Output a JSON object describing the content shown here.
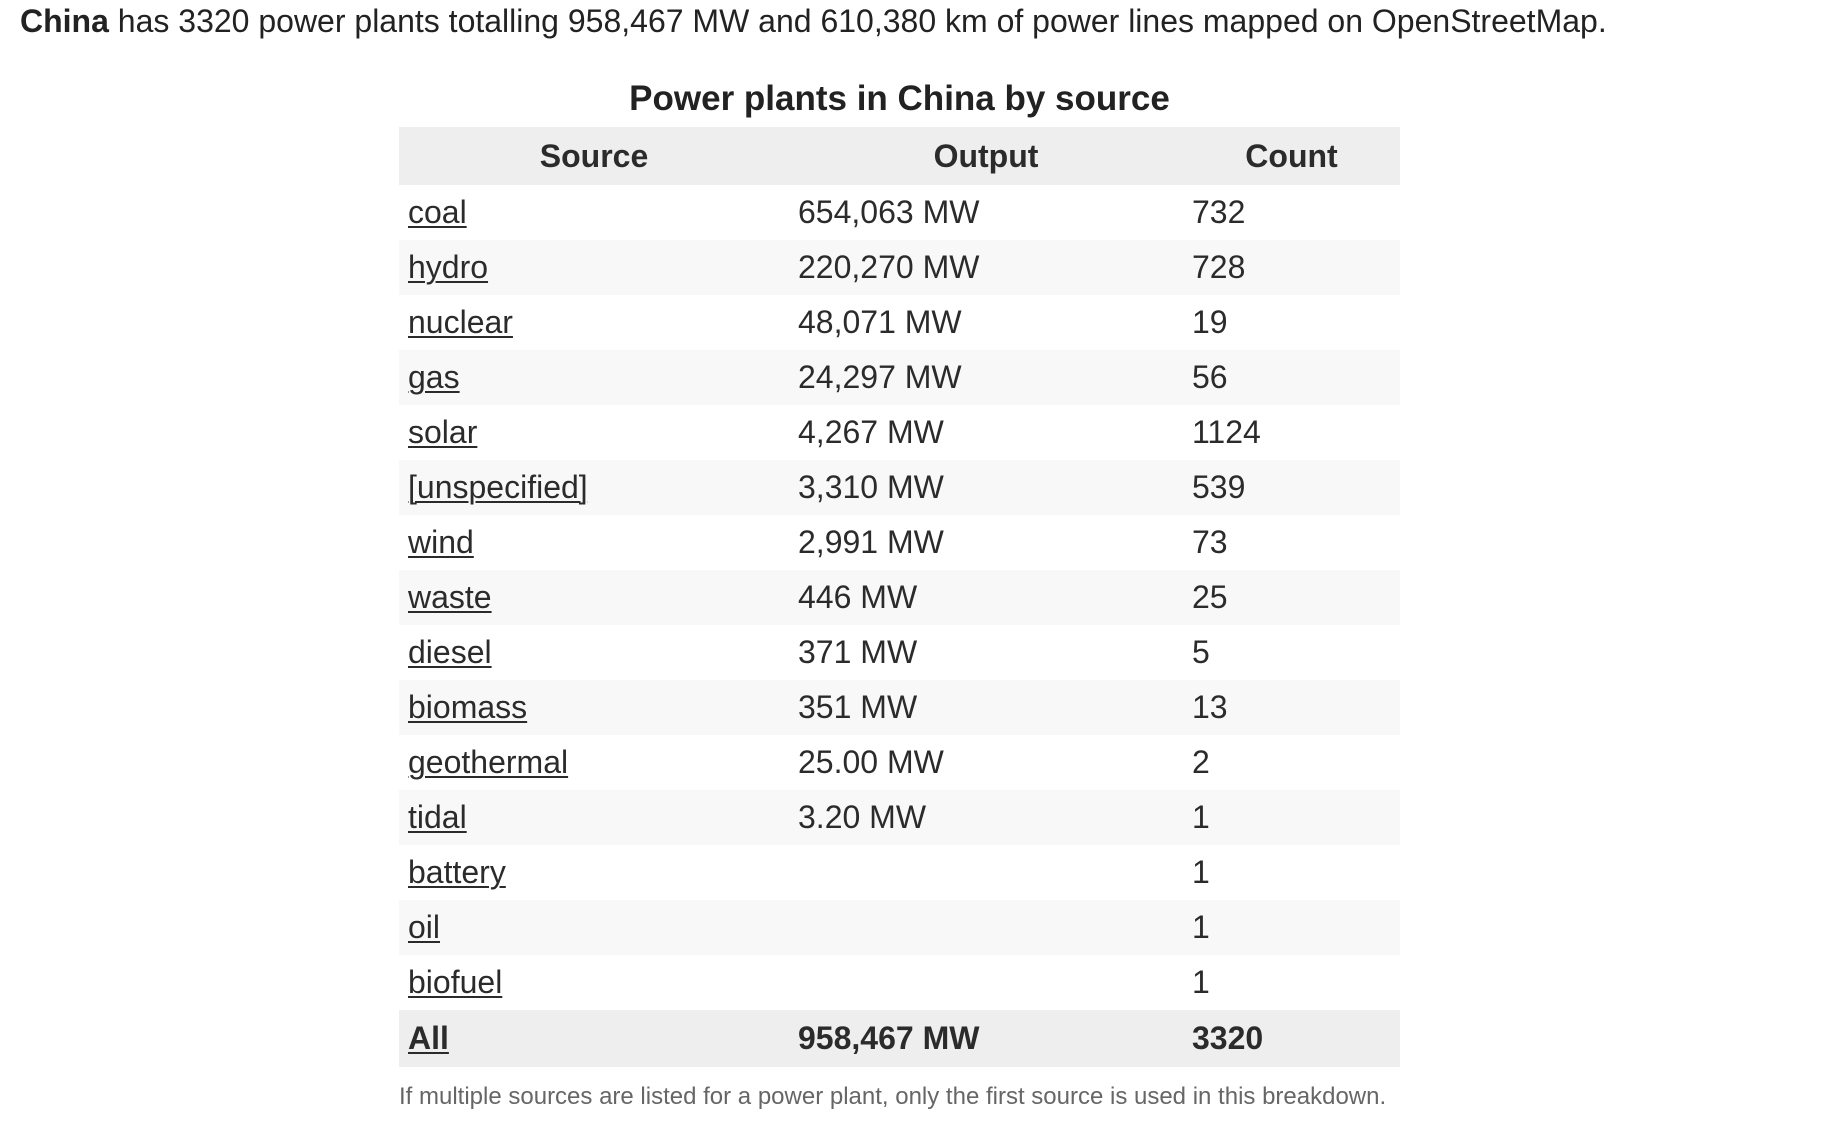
{
  "summary": {
    "country": "China",
    "text": " has 3320 power plants totalling 958,467 MW and 610,380 km of power lines mapped on OpenStreetMap."
  },
  "table": {
    "caption": "Power plants in China by source",
    "headers": [
      "Source",
      "Output",
      "Count"
    ],
    "rows": [
      {
        "source": "coal",
        "output": "654,063 MW",
        "count": "732"
      },
      {
        "source": "hydro",
        "output": "220,270 MW",
        "count": "728"
      },
      {
        "source": "nuclear",
        "output": "48,071 MW",
        "count": "19"
      },
      {
        "source": "gas",
        "output": "24,297 MW",
        "count": "56"
      },
      {
        "source": "solar",
        "output": "4,267 MW",
        "count": "1124"
      },
      {
        "source": "[unspecified]",
        "output": "3,310 MW",
        "count": "539"
      },
      {
        "source": "wind",
        "output": "2,991 MW",
        "count": "73"
      },
      {
        "source": "waste",
        "output": "446 MW",
        "count": "25"
      },
      {
        "source": "diesel",
        "output": "371 MW",
        "count": "5"
      },
      {
        "source": "biomass",
        "output": "351 MW",
        "count": "13"
      },
      {
        "source": "geothermal",
        "output": "25.00 MW",
        "count": "2"
      },
      {
        "source": "tidal",
        "output": "3.20 MW",
        "count": "1"
      },
      {
        "source": "battery",
        "output": "",
        "count": "1"
      },
      {
        "source": "oil",
        "output": "",
        "count": "1"
      },
      {
        "source": "biofuel",
        "output": "",
        "count": "1"
      }
    ],
    "total": {
      "source": "All",
      "output": "958,467 MW",
      "count": "3320"
    }
  },
  "note": "If multiple sources are listed for a power plant, only the first source is used in this breakdown."
}
